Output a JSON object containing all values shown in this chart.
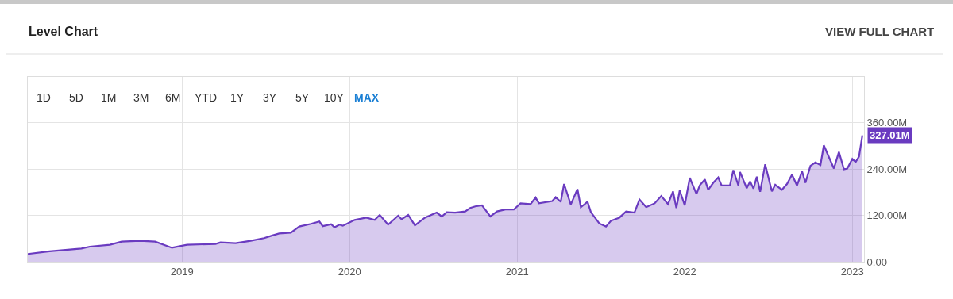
{
  "chart_data": {
    "type": "area",
    "title": "Level Chart",
    "annotations": [
      "VIEW FULL CHART",
      "1D",
      "5D",
      "1M",
      "3M",
      "6M",
      "YTD",
      "1Y",
      "3Y",
      "5Y",
      "10Y",
      "MAX"
    ],
    "x": [
      2018.08,
      2018.21,
      2018.4,
      2018.45,
      2018.57,
      2018.64,
      2018.75,
      2018.84,
      2018.94,
      2019.03,
      2019.2,
      2019.23,
      2019.32,
      2019.41,
      2019.49,
      2019.54,
      2019.58,
      2019.65,
      2019.7,
      2019.77,
      2019.82,
      2019.84,
      2019.89,
      2019.91,
      2019.94,
      2019.96,
      2020.03,
      2020.1,
      2020.15,
      2020.18,
      2020.23,
      2020.29,
      2020.31,
      2020.35,
      2020.39,
      2020.45,
      2020.52,
      2020.55,
      2020.58,
      2020.63,
      2020.69,
      2020.72,
      2020.75,
      2020.79,
      2020.84,
      2020.88,
      2020.93,
      2020.98,
      2021.02,
      2021.08,
      2021.11,
      2021.13,
      2021.21,
      2021.23,
      2021.26,
      2021.28,
      2021.32,
      2021.36,
      2021.38,
      2021.42,
      2021.44,
      2021.49,
      2021.53,
      2021.56,
      2021.61,
      2021.65,
      2021.7,
      2021.73,
      2021.77,
      2021.82,
      2021.86,
      2021.9,
      2021.93,
      2021.95,
      2021.97,
      2022.0,
      2022.03,
      2022.07,
      2022.09,
      2022.12,
      2022.14,
      2022.17,
      2022.2,
      2022.22,
      2022.27,
      2022.29,
      2022.32,
      2022.33,
      2022.37,
      2022.39,
      2022.41,
      2022.43,
      2022.45,
      2022.48,
      2022.52,
      2022.54,
      2022.58,
      2022.61,
      2022.64,
      2022.67,
      2022.7,
      2022.72,
      2022.75,
      2022.78,
      2022.81,
      2022.83,
      2022.89,
      2022.92,
      2022.95,
      2022.97,
      2023.0,
      2023.02,
      2023.04,
      2023.06
    ],
    "series": [
      {
        "color": "#6a3bc0",
        "values": [
          20,
          27,
          34,
          39,
          44,
          52,
          54,
          52,
          36,
          44,
          46,
          50,
          48,
          54,
          61,
          68,
          73,
          75,
          91,
          98,
          104,
          92,
          97,
          89,
          96,
          93,
          108,
          114,
          108,
          121,
          96,
          119,
          110,
          121,
          94,
          114,
          127,
          117,
          128,
          127,
          130,
          139,
          143,
          146,
          117,
          130,
          135,
          135,
          151,
          149,
          166,
          151,
          157,
          167,
          155,
          201,
          148,
          188,
          141,
          155,
          128,
          99,
          91,
          106,
          114,
          130,
          127,
          161,
          141,
          151,
          170,
          149,
          182,
          139,
          184,
          146,
          217,
          175,
          198,
          213,
          186,
          204,
          218,
          197,
          198,
          237,
          197,
          232,
          190,
          208,
          189,
          220,
          181,
          252,
          182,
          199,
          186,
          201,
          225,
          197,
          234,
          204,
          248,
          257,
          250,
          301,
          241,
          284,
          239,
          241,
          266,
          258,
          272,
          327.01
        ],
        "value_labels": [
          null,
          null,
          null,
          null,
          null,
          null,
          null,
          null,
          null,
          null,
          null,
          null,
          null,
          null,
          null,
          null,
          null,
          null,
          null,
          null,
          null,
          null,
          null,
          null,
          null,
          null,
          null,
          null,
          null,
          null,
          null,
          null,
          null,
          null,
          null,
          null,
          null,
          null,
          null,
          null,
          null,
          null,
          null,
          null,
          null,
          null,
          null,
          null,
          null,
          null,
          null,
          null,
          null,
          null,
          null,
          null,
          null,
          null,
          null,
          null,
          null,
          null,
          null,
          null,
          null,
          null,
          null,
          null,
          null,
          null,
          null,
          null,
          null,
          null,
          null,
          null,
          null,
          null,
          null,
          null,
          null,
          null,
          null,
          null,
          null,
          null,
          null,
          null,
          null,
          null,
          null,
          null,
          null,
          null,
          null,
          null,
          null,
          null,
          null,
          null,
          null,
          null,
          null,
          null,
          null,
          null,
          null,
          null,
          null,
          null,
          null,
          null,
          null,
          "327.01M"
        ]
      }
    ],
    "xlim": [
      2018.08,
      2023.07
    ],
    "xticks": [
      2019,
      2020,
      2021,
      2022,
      2023
    ],
    "ylim": [
      0,
      478
    ],
    "yticks": [
      {
        "value": 0,
        "label": "0.00"
      },
      {
        "value": 120,
        "label": "120.00M"
      },
      {
        "value": 240,
        "label": "240.00M"
      },
      {
        "value": 360,
        "label": "360.00M"
      }
    ],
    "grid": true
  }
}
